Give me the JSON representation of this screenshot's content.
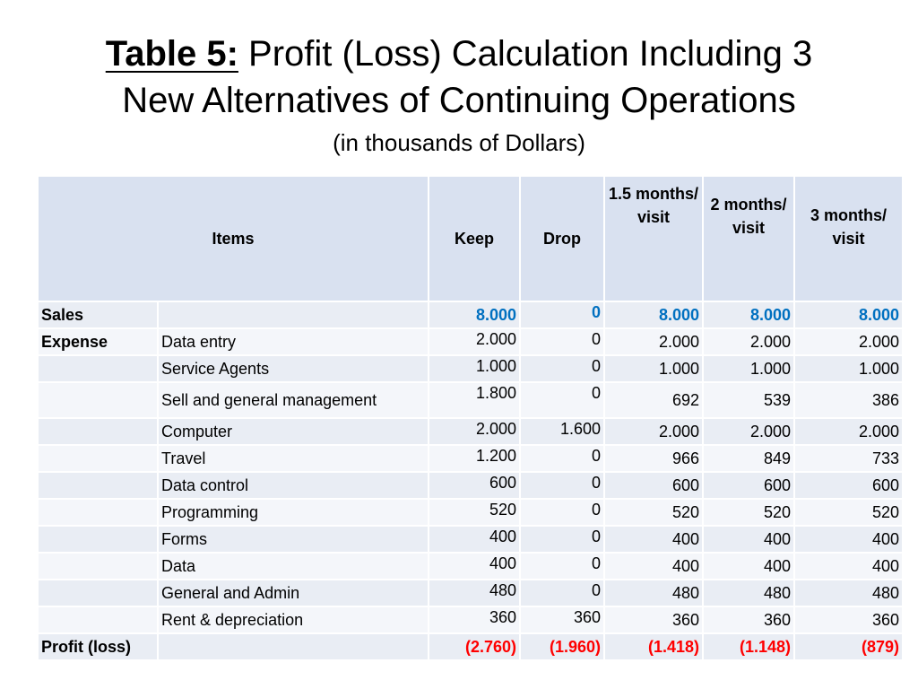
{
  "title": {
    "label": "Table 5:",
    "line1_rest": " Profit (Loss) Calculation Including 3",
    "line2": "New Alternatives of Continuing Operations",
    "subtitle": "(in thousands of Dollars)"
  },
  "table": {
    "headers": {
      "items": "Items",
      "keep": "Keep",
      "drop": "Drop",
      "m15": "1.5 months/ visit",
      "m2": "2 months/ visit",
      "m3": "3 months/ visit"
    },
    "rows": [
      {
        "label": "Sales",
        "item": "",
        "keep": "8.000",
        "drop": "0",
        "m15": "8.000",
        "m2": "8.000",
        "m3": "8.000"
      },
      {
        "label": "Expense",
        "item": "Data entry",
        "keep": "2.000",
        "drop": "0",
        "m15": "2.000",
        "m2": "2.000",
        "m3": "2.000"
      },
      {
        "label": "",
        "item": "Service Agents",
        "keep": "1.000",
        "drop": "0",
        "m15": "1.000",
        "m2": "1.000",
        "m3": "1.000"
      },
      {
        "label": "",
        "item": "Sell and general management",
        "keep": "1.800",
        "drop": "0",
        "m15": "692",
        "m2": "539",
        "m3": "386"
      },
      {
        "label": "",
        "item": "Computer",
        "keep": "2.000",
        "drop": "1.600",
        "m15": "2.000",
        "m2": "2.000",
        "m3": "2.000"
      },
      {
        "label": "",
        "item": "Travel",
        "keep": "1.200",
        "drop": "0",
        "m15": "966",
        "m2": "849",
        "m3": "733"
      },
      {
        "label": "",
        "item": "Data control",
        "keep": "600",
        "drop": "0",
        "m15": "600",
        "m2": "600",
        "m3": "600"
      },
      {
        "label": "",
        "item": "Programming",
        "keep": "520",
        "drop": "0",
        "m15": "520",
        "m2": "520",
        "m3": "520"
      },
      {
        "label": "",
        "item": "Forms",
        "keep": "400",
        "drop": "0",
        "m15": "400",
        "m2": "400",
        "m3": "400"
      },
      {
        "label": "",
        "item": "Data",
        "keep": "400",
        "drop": "0",
        "m15": "400",
        "m2": "400",
        "m3": "400"
      },
      {
        "label": "",
        "item": "General and Admin",
        "keep": "480",
        "drop": "0",
        "m15": "480",
        "m2": "480",
        "m3": "480"
      },
      {
        "label": "",
        "item": "Rent & depreciation",
        "keep": "360",
        "drop": "360",
        "m15": "360",
        "m2": "360",
        "m3": "360"
      },
      {
        "label": "Profit (loss)",
        "item": "",
        "keep": "(2.760)",
        "drop": "(1.960)",
        "m15": "(1.418)",
        "m2": "(1.148)",
        "m3": "(879)"
      }
    ]
  }
}
